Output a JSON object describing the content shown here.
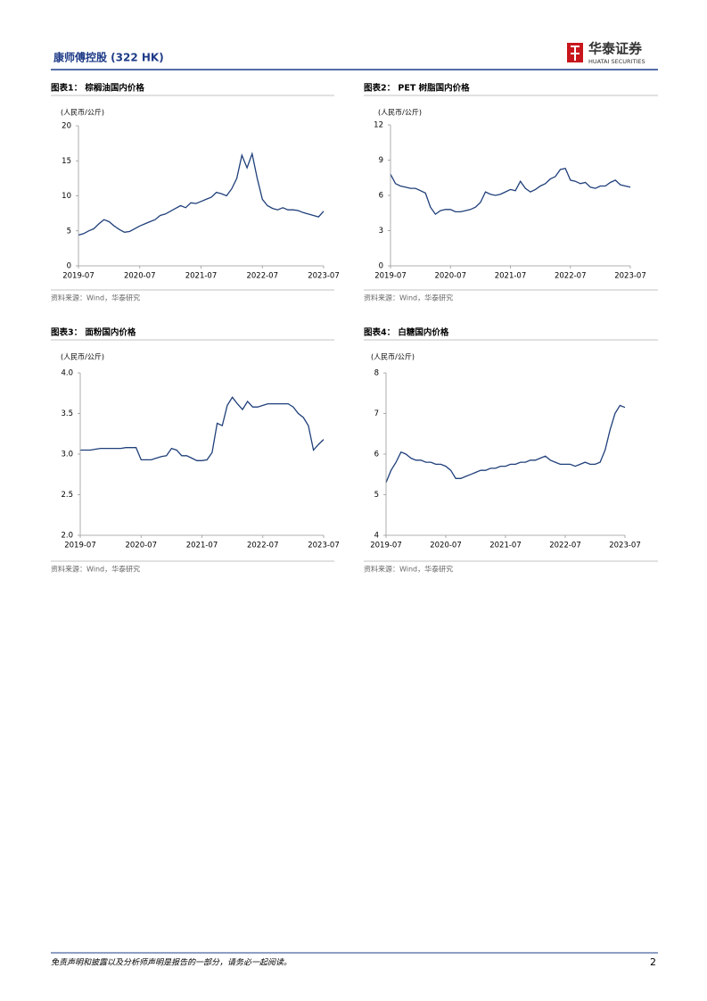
{
  "header": {
    "company": "康师傅控股 (322 HK)",
    "logo_cn": "华泰证券",
    "logo_en": "HUATAI SECURITIES"
  },
  "chart_data": [
    {
      "type": "line",
      "title": "图表1： 棕榈油国内价格",
      "y_label": "(人民币/公斤)",
      "source": "资料来源：Wind，华泰研究",
      "color": "#1f3f7a",
      "x": [
        "2019-07",
        "2019-08",
        "2019-09",
        "2019-10",
        "2019-11",
        "2019-12",
        "2020-01",
        "2020-02",
        "2020-03",
        "2020-04",
        "2020-05",
        "2020-06",
        "2020-07",
        "2020-08",
        "2020-09",
        "2020-10",
        "2020-11",
        "2020-12",
        "2021-01",
        "2021-02",
        "2021-03",
        "2021-04",
        "2021-05",
        "2021-06",
        "2021-07",
        "2021-08",
        "2021-09",
        "2021-10",
        "2021-11",
        "2021-12",
        "2022-01",
        "2022-02",
        "2022-03",
        "2022-04",
        "2022-05",
        "2022-06",
        "2022-07",
        "2022-08",
        "2022-09",
        "2022-10",
        "2022-11",
        "2022-12",
        "2023-01",
        "2023-02",
        "2023-03",
        "2023-04",
        "2023-05",
        "2023-06",
        "2023-07"
      ],
      "values": [
        4.4,
        4.6,
        5.0,
        5.3,
        6.0,
        6.6,
        6.3,
        5.7,
        5.2,
        4.8,
        4.9,
        5.3,
        5.7,
        6.0,
        6.3,
        6.6,
        7.2,
        7.4,
        7.8,
        8.2,
        8.6,
        8.3,
        9.0,
        8.9,
        9.2,
        9.5,
        9.8,
        10.5,
        10.3,
        10.0,
        11.0,
        12.5,
        15.8,
        14.0,
        16.0,
        12.5,
        9.5,
        8.6,
        8.2,
        8.0,
        8.3,
        8.0,
        8.0,
        7.9,
        7.6,
        7.4,
        7.2,
        7.0,
        7.8
      ],
      "xlim": [
        "2019-07",
        "2023-07"
      ],
      "xticks": [
        "2019-07",
        "2020-07",
        "2021-07",
        "2022-07",
        "2023-07"
      ],
      "ylim": [
        0,
        20
      ],
      "yticks": [
        0,
        5,
        10,
        15,
        20
      ]
    },
    {
      "type": "line",
      "title": "图表2： PET 树脂国内价格",
      "y_label": "(人民币/公斤)",
      "source": "资料来源：Wind，华泰研究",
      "color": "#1f3f7a",
      "x": [
        "2019-07",
        "2019-08",
        "2019-09",
        "2019-10",
        "2019-11",
        "2019-12",
        "2020-01",
        "2020-02",
        "2020-03",
        "2020-04",
        "2020-05",
        "2020-06",
        "2020-07",
        "2020-08",
        "2020-09",
        "2020-10",
        "2020-11",
        "2020-12",
        "2021-01",
        "2021-02",
        "2021-03",
        "2021-04",
        "2021-05",
        "2021-06",
        "2021-07",
        "2021-08",
        "2021-09",
        "2021-10",
        "2021-11",
        "2021-12",
        "2022-01",
        "2022-02",
        "2022-03",
        "2022-04",
        "2022-05",
        "2022-06",
        "2022-07",
        "2022-08",
        "2022-09",
        "2022-10",
        "2022-11",
        "2022-12",
        "2023-01",
        "2023-02",
        "2023-03",
        "2023-04",
        "2023-05",
        "2023-06",
        "2023-07"
      ],
      "values": [
        7.8,
        7.0,
        6.8,
        6.7,
        6.6,
        6.6,
        6.4,
        6.2,
        5.0,
        4.4,
        4.7,
        4.8,
        4.8,
        4.6,
        4.6,
        4.7,
        4.8,
        5.0,
        5.4,
        6.3,
        6.1,
        6.0,
        6.1,
        6.3,
        6.5,
        6.4,
        7.2,
        6.6,
        6.3,
        6.5,
        6.8,
        7.0,
        7.4,
        7.6,
        8.2,
        8.3,
        7.3,
        7.2,
        7.0,
        7.1,
        6.7,
        6.6,
        6.8,
        6.8,
        7.1,
        7.3,
        6.9,
        6.8,
        6.7
      ],
      "xlim": [
        "2019-07",
        "2023-07"
      ],
      "xticks": [
        "2019-07",
        "2020-07",
        "2021-07",
        "2022-07",
        "2023-07"
      ],
      "ylim": [
        0,
        12
      ],
      "yticks": [
        0,
        3,
        6,
        9,
        12
      ]
    },
    {
      "type": "line",
      "title": "图表3： 面粉国内价格",
      "y_label": "(人民币/公斤)",
      "source": "资料来源：Wind，华泰研究",
      "color": "#1f3f7a",
      "x": [
        "2019-07",
        "2019-08",
        "2019-09",
        "2019-10",
        "2019-11",
        "2019-12",
        "2020-01",
        "2020-02",
        "2020-03",
        "2020-04",
        "2020-05",
        "2020-06",
        "2020-07",
        "2020-08",
        "2020-09",
        "2020-10",
        "2020-11",
        "2020-12",
        "2021-01",
        "2021-02",
        "2021-03",
        "2021-04",
        "2021-05",
        "2021-06",
        "2021-07",
        "2021-08",
        "2021-09",
        "2021-10",
        "2021-11",
        "2021-12",
        "2022-01",
        "2022-02",
        "2022-03",
        "2022-04",
        "2022-05",
        "2022-06",
        "2022-07",
        "2022-08",
        "2022-09",
        "2022-10",
        "2022-11",
        "2022-12",
        "2023-01",
        "2023-02",
        "2023-03",
        "2023-04",
        "2023-05",
        "2023-06",
        "2023-07"
      ],
      "values": [
        3.05,
        3.05,
        3.05,
        3.06,
        3.07,
        3.07,
        3.07,
        3.07,
        3.07,
        3.08,
        3.08,
        3.08,
        2.93,
        2.93,
        2.93,
        2.95,
        2.97,
        2.98,
        3.07,
        3.05,
        2.98,
        2.98,
        2.95,
        2.92,
        2.92,
        2.93,
        3.02,
        3.38,
        3.35,
        3.6,
        3.7,
        3.62,
        3.55,
        3.65,
        3.58,
        3.58,
        3.6,
        3.62,
        3.62,
        3.62,
        3.62,
        3.62,
        3.58,
        3.5,
        3.45,
        3.35,
        3.05,
        3.12,
        3.18
      ],
      "xlim": [
        "2019-07",
        "2023-07"
      ],
      "xticks": [
        "2019-07",
        "2020-07",
        "2021-07",
        "2022-07",
        "2023-07"
      ],
      "ylim": [
        2,
        4
      ],
      "yticks": [
        {
          "value": 2,
          "label": "2.0"
        },
        2.5,
        {
          "value": 3,
          "label": "3.0"
        },
        3.5,
        {
          "value": 4,
          "label": "4.0"
        }
      ]
    },
    {
      "type": "line",
      "title": "图表4： 白糖国内价格",
      "y_label": "(人民币/公斤)",
      "source": "资料来源：Wind，华泰研究",
      "color": "#1f3f7a",
      "x": [
        "2019-07",
        "2019-08",
        "2019-09",
        "2019-10",
        "2019-11",
        "2019-12",
        "2020-01",
        "2020-02",
        "2020-03",
        "2020-04",
        "2020-05",
        "2020-06",
        "2020-07",
        "2020-08",
        "2020-09",
        "2020-10",
        "2020-11",
        "2020-12",
        "2021-01",
        "2021-02",
        "2021-03",
        "2021-04",
        "2021-05",
        "2021-06",
        "2021-07",
        "2021-08",
        "2021-09",
        "2021-10",
        "2021-11",
        "2021-12",
        "2022-01",
        "2022-02",
        "2022-03",
        "2022-04",
        "2022-05",
        "2022-06",
        "2022-07",
        "2022-08",
        "2022-09",
        "2022-10",
        "2022-11",
        "2022-12",
        "2023-01",
        "2023-02",
        "2023-03",
        "2023-04",
        "2023-05",
        "2023-06",
        "2023-07"
      ],
      "values": [
        5.3,
        5.6,
        5.8,
        6.05,
        6.0,
        5.9,
        5.85,
        5.85,
        5.8,
        5.8,
        5.75,
        5.75,
        5.7,
        5.6,
        5.4,
        5.4,
        5.45,
        5.5,
        5.55,
        5.6,
        5.6,
        5.65,
        5.65,
        5.7,
        5.7,
        5.75,
        5.75,
        5.8,
        5.8,
        5.85,
        5.85,
        5.9,
        5.95,
        5.85,
        5.8,
        5.75,
        5.75,
        5.75,
        5.7,
        5.75,
        5.8,
        5.75,
        5.75,
        5.8,
        6.1,
        6.6,
        7.0,
        7.2,
        7.15
      ],
      "xlim": [
        "2019-07",
        "2023-07"
      ],
      "xticks": [
        "2019-07",
        "2020-07",
        "2021-07",
        "2022-07",
        "2023-07"
      ],
      "ylim": [
        4,
        8
      ],
      "yticks": [
        4,
        5,
        6,
        7,
        8
      ]
    }
  ],
  "footer": {
    "disclaimer": "免责声明和披露以及分析师声明是报告的一部分，请务必一起阅读。",
    "page": "2"
  }
}
